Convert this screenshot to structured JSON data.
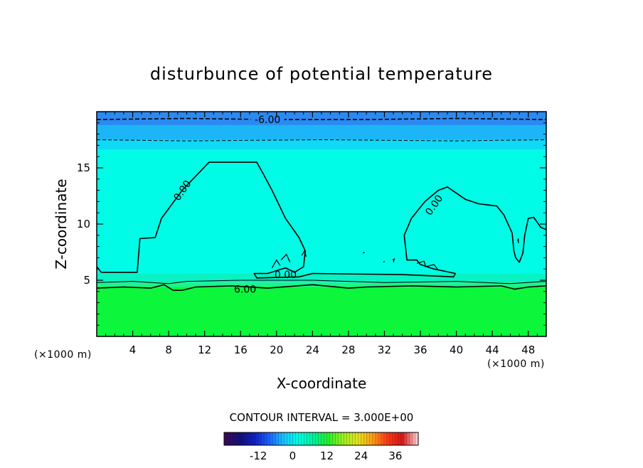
{
  "chart_data": {
    "type": "contour",
    "title": "disturbunce of potential temperature",
    "xlabel": "X-coordinate",
    "ylabel": "Z-coordinate",
    "x_unit_label": "(×1000 m)",
    "xlim": [
      0,
      50
    ],
    "ylim": [
      0,
      20
    ],
    "x_ticks": [
      4,
      8,
      12,
      16,
      20,
      24,
      28,
      32,
      36,
      40,
      44,
      48
    ],
    "y_ticks": [
      5,
      10,
      15
    ],
    "contour_interval_text": "CONTOUR INTERVAL = 3.000E+00",
    "contour_labels": [
      {
        "text": "-6.00",
        "x": 19,
        "z": 19.3
      },
      {
        "text": "6.00",
        "x": 16.5,
        "z": 4.2
      },
      {
        "text": "0.00",
        "x": 9.5,
        "z": 13.0
      },
      {
        "text": "0.00",
        "x": 21,
        "z": 5.5
      },
      {
        "text": "0.00",
        "x": 37.5,
        "z": 11.7
      }
    ],
    "colorbar": {
      "ticks": [
        -12,
        0,
        12,
        24,
        36
      ],
      "range": [
        -24,
        44
      ],
      "colors": [
        "#3c0a5c",
        "#10107a",
        "#1020c8",
        "#1e64ff",
        "#18c8ff",
        "#00ffe0",
        "#00f09a",
        "#28f028",
        "#9cf020",
        "#e4e41a",
        "#ff9c18",
        "#ff3a18",
        "#d81818",
        "#ffc8c8"
      ]
    },
    "field_bands": [
      {
        "z0": 0,
        "z1": 4.4,
        "color": "#0cf63c"
      },
      {
        "z0": 4.4,
        "z1": 4.8,
        "color": "#1cf48a"
      },
      {
        "z0": 4.8,
        "z1": 5.6,
        "color": "#08f2c4"
      },
      {
        "z0": 5.6,
        "z1": 16.6,
        "color": "#00fbe6"
      },
      {
        "z0": 16.6,
        "z1": 17.5,
        "color": "#10d9f6"
      },
      {
        "z0": 17.5,
        "z1": 18.8,
        "color": "#1cb6f8"
      },
      {
        "z0": 18.8,
        "z1": 20,
        "color": "#2a8af2"
      }
    ],
    "contours": [
      {
        "level": 0,
        "points": [
          [
            0,
            6.2
          ],
          [
            0.5,
            5.7
          ],
          [
            4.5,
            5.7
          ],
          [
            4.8,
            8.7
          ],
          [
            6.5,
            8.8
          ],
          [
            7.2,
            10.5
          ],
          [
            9.5,
            13
          ],
          [
            12.5,
            15.5
          ],
          [
            17.8,
            15.5
          ],
          [
            18.5,
            14.5
          ],
          [
            19.5,
            13
          ],
          [
            21,
            10.5
          ],
          [
            22.5,
            8.8
          ],
          [
            23.2,
            7.6
          ],
          [
            23,
            6.2
          ],
          [
            22,
            5.7
          ],
          [
            21,
            6.1
          ],
          [
            19,
            5.6
          ],
          [
            17.5,
            5.6
          ],
          [
            17.8,
            5.2
          ],
          [
            22.5,
            5.3
          ],
          [
            24,
            5.6
          ],
          [
            34,
            5.5
          ],
          [
            39.7,
            5.3
          ],
          [
            39.9,
            5.6
          ],
          [
            37.5,
            6
          ],
          [
            36,
            6.4
          ],
          [
            35.6,
            6.8
          ],
          [
            34.5,
            6.8
          ],
          [
            34.2,
            9
          ],
          [
            35,
            10.5
          ],
          [
            36.5,
            12
          ],
          [
            38,
            13
          ],
          [
            39,
            13.3
          ],
          [
            41,
            12.2
          ],
          [
            42.5,
            11.8
          ],
          [
            44.5,
            11.6
          ],
          [
            45.3,
            10.8
          ],
          [
            46.2,
            9.2
          ],
          [
            46.4,
            7.6
          ],
          [
            46.6,
            7.0
          ],
          [
            47,
            6.6
          ],
          [
            47.4,
            7.4
          ],
          [
            47.6,
            9
          ],
          [
            48,
            10.5
          ],
          [
            48.6,
            10.6
          ],
          [
            49.4,
            9.7
          ],
          [
            50,
            9.5
          ]
        ]
      },
      {
        "level": 6,
        "points": [
          [
            0,
            4.3
          ],
          [
            3,
            4.4
          ],
          [
            6,
            4.3
          ],
          [
            7.5,
            4.6
          ],
          [
            8.5,
            4.1
          ],
          [
            9.5,
            4.1
          ],
          [
            11,
            4.4
          ],
          [
            15,
            4.5
          ],
          [
            19,
            4.3
          ],
          [
            24,
            4.6
          ],
          [
            28,
            4.3
          ],
          [
            30,
            4.4
          ],
          [
            35,
            4.5
          ],
          [
            40,
            4.4
          ],
          [
            45,
            4.5
          ],
          [
            46.5,
            4.2
          ],
          [
            48,
            4.4
          ],
          [
            50,
            4.5
          ]
        ]
      },
      {
        "level": 3,
        "dashed": false,
        "thin": true,
        "points": [
          [
            0,
            4.8
          ],
          [
            4,
            4.9
          ],
          [
            8,
            4.7
          ],
          [
            10,
            4.9
          ],
          [
            16,
            5.0
          ],
          [
            24,
            5.0
          ],
          [
            32,
            4.8
          ],
          [
            40,
            4.9
          ],
          [
            46,
            4.7
          ],
          [
            50,
            4.9
          ]
        ]
      },
      {
        "level": -6,
        "dashed": true,
        "points": [
          [
            0,
            19.3
          ],
          [
            10,
            19.4
          ],
          [
            19,
            19.3
          ],
          [
            30,
            19.3
          ],
          [
            40,
            19.4
          ],
          [
            50,
            19.3
          ]
        ]
      },
      {
        "level": -3,
        "dashed": true,
        "thin": true,
        "points": [
          [
            0,
            17.5
          ],
          [
            10,
            17.4
          ],
          [
            25,
            17.5
          ],
          [
            40,
            17.4
          ],
          [
            50,
            17.5
          ]
        ]
      }
    ],
    "small_cells": [
      [
        [
          20.5,
          6.8
        ],
        [
          21.1,
          7.3
        ],
        [
          21.5,
          6.6
        ]
      ],
      [
        [
          19.5,
          6.1
        ],
        [
          20,
          6.8
        ],
        [
          20.4,
          6.3
        ]
      ],
      [
        [
          22.8,
          7.2
        ],
        [
          23.1,
          7.6
        ],
        [
          23.3,
          7.1
        ]
      ],
      [
        [
          29.6,
          7.4
        ],
        [
          29.8,
          7.5
        ]
      ],
      [
        [
          31.9,
          6.6
        ],
        [
          32.0,
          6.7
        ]
      ],
      [
        [
          32.9,
          6.8
        ],
        [
          33.1,
          6.9
        ],
        [
          33.0,
          6.6
        ]
      ],
      [
        [
          35.6,
          6.5
        ],
        [
          36.4,
          6.7
        ],
        [
          36.6,
          6.2
        ],
        [
          37.5,
          6.4
        ],
        [
          38,
          5.9
        ]
      ],
      [
        [
          46.8,
          8.5
        ],
        [
          46.9,
          8.7
        ],
        [
          46.9,
          8.3
        ]
      ]
    ]
  }
}
